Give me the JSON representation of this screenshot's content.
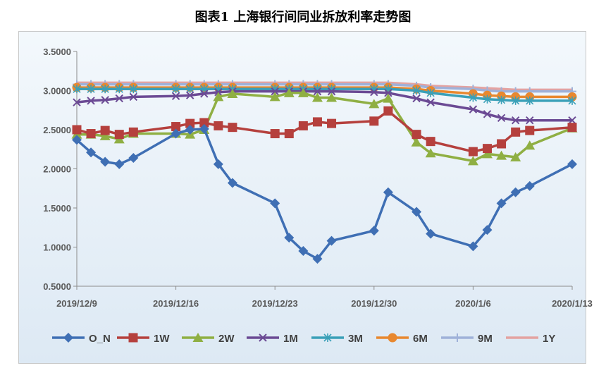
{
  "title": "图表1  上海银行间同业拆放利率走势图",
  "chart_data": {
    "type": "line",
    "title": "图表1  上海银行间同业拆放利率走势图",
    "xlabel": "",
    "ylabel": "",
    "ylim": [
      0.5,
      3.5
    ],
    "yticks": [
      "0.5000",
      "1.0000",
      "1.5000",
      "2.0000",
      "2.5000",
      "3.0000",
      "3.5000"
    ],
    "xticks": [
      "2019/12/9",
      "2019/12/16",
      "2019/12/23",
      "2019/12/30",
      "2020/1/6",
      "2020/1/13"
    ],
    "legend_position": "bottom",
    "grid": false,
    "x": [
      "2019/12/9",
      "2019/12/10",
      "2019/12/11",
      "2019/12/12",
      "2019/12/13",
      "2019/12/16",
      "2019/12/17",
      "2019/12/18",
      "2019/12/19",
      "2019/12/20",
      "2019/12/23",
      "2019/12/24",
      "2019/12/25",
      "2019/12/26",
      "2019/12/27",
      "2019/12/30",
      "2019/12/31",
      "2020/1/2",
      "2020/1/3",
      "2020/1/6",
      "2020/1/7",
      "2020/1/8",
      "2020/1/9",
      "2020/1/10",
      "2020/1/13"
    ],
    "series": [
      {
        "name": "O_N",
        "color": "#3f6fb4",
        "marker": "diamond",
        "values": [
          2.37,
          2.21,
          2.09,
          2.06,
          2.14,
          2.45,
          2.5,
          2.51,
          2.06,
          1.82,
          1.56,
          1.12,
          0.95,
          0.85,
          1.08,
          1.21,
          1.7,
          1.45,
          1.17,
          1.01,
          1.22,
          1.56,
          1.7,
          1.78,
          2.06
        ]
      },
      {
        "name": "1W",
        "color": "#b5403d",
        "marker": "square",
        "values": [
          2.5,
          2.45,
          2.49,
          2.44,
          2.47,
          2.54,
          2.58,
          2.59,
          2.55,
          2.53,
          2.45,
          2.45,
          2.55,
          2.6,
          2.58,
          2.61,
          2.74,
          2.44,
          2.35,
          2.22,
          2.26,
          2.32,
          2.47,
          2.49,
          2.53
        ]
      },
      {
        "name": "2W",
        "color": "#8faf43",
        "marker": "triangle",
        "values": [
          2.44,
          2.44,
          2.42,
          2.38,
          2.45,
          2.45,
          2.44,
          2.5,
          2.92,
          2.96,
          2.92,
          2.97,
          2.97,
          2.91,
          2.91,
          2.83,
          2.9,
          2.34,
          2.2,
          2.1,
          2.19,
          2.17,
          2.15,
          2.3,
          2.52
        ]
      },
      {
        "name": "1M",
        "color": "#6b4a94",
        "marker": "x",
        "values": [
          2.85,
          2.87,
          2.88,
          2.9,
          2.92,
          2.93,
          2.94,
          2.96,
          2.98,
          2.99,
          2.99,
          2.99,
          2.99,
          2.99,
          2.99,
          2.98,
          2.97,
          2.9,
          2.85,
          2.76,
          2.7,
          2.65,
          2.62,
          2.62,
          2.62
        ]
      },
      {
        "name": "3M",
        "color": "#3aa0b8",
        "marker": "star",
        "values": [
          3.02,
          3.02,
          3.02,
          3.02,
          3.02,
          3.02,
          3.02,
          3.02,
          3.02,
          3.02,
          3.02,
          3.02,
          3.02,
          3.02,
          3.02,
          3.02,
          3.02,
          3.0,
          2.97,
          2.91,
          2.89,
          2.88,
          2.87,
          2.87,
          2.87
        ]
      },
      {
        "name": "6M",
        "color": "#e8882f",
        "marker": "circle",
        "values": [
          3.04,
          3.04,
          3.04,
          3.04,
          3.04,
          3.04,
          3.04,
          3.04,
          3.04,
          3.04,
          3.04,
          3.04,
          3.04,
          3.04,
          3.04,
          3.04,
          3.04,
          3.02,
          3.0,
          2.96,
          2.94,
          2.93,
          2.92,
          2.92,
          2.92
        ]
      },
      {
        "name": "9M",
        "color": "#9fb1d9",
        "marker": "plus",
        "values": [
          3.08,
          3.08,
          3.08,
          3.08,
          3.08,
          3.08,
          3.08,
          3.08,
          3.08,
          3.08,
          3.08,
          3.08,
          3.08,
          3.08,
          3.08,
          3.08,
          3.08,
          3.06,
          3.04,
          3.02,
          3.0,
          2.99,
          2.99,
          2.99,
          2.99
        ]
      },
      {
        "name": "1Y",
        "color": "#e4a3a1",
        "marker": "none",
        "values": [
          3.1,
          3.1,
          3.1,
          3.1,
          3.1,
          3.1,
          3.1,
          3.1,
          3.1,
          3.1,
          3.1,
          3.1,
          3.1,
          3.1,
          3.1,
          3.1,
          3.1,
          3.08,
          3.06,
          3.04,
          3.03,
          3.02,
          3.01,
          3.01,
          3.01
        ]
      }
    ]
  }
}
